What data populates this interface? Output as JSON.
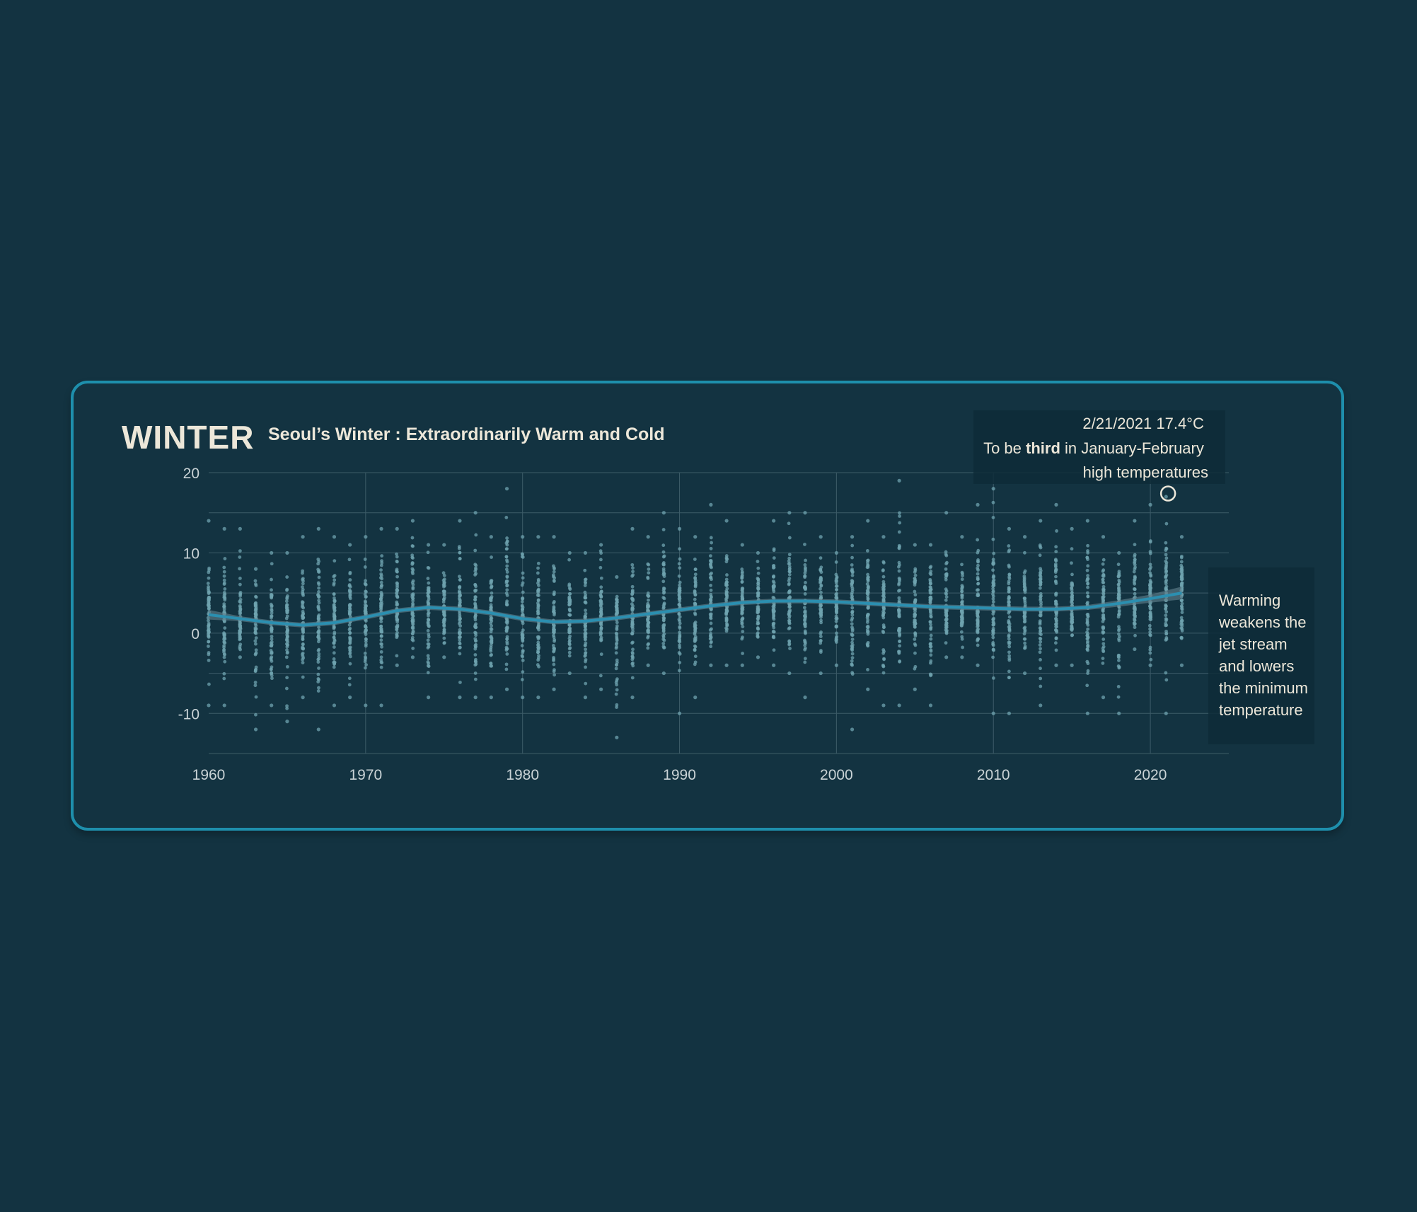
{
  "chart_data": {
    "type": "scatter",
    "title": "WINTER",
    "subtitle": "Seoul’s Winter : Extraordinarily Warm and Cold",
    "xlabel": "",
    "ylabel": "",
    "xlim": [
      1960,
      2025
    ],
    "ylim": [
      -15,
      20
    ],
    "x_ticks": [
      1960,
      1970,
      1980,
      1990,
      2000,
      2010,
      2020
    ],
    "y_ticks": [
      20,
      10,
      0,
      -10
    ],
    "x_tick_labels": [
      "1960",
      "1970",
      "1980",
      "1990",
      "2000",
      "2010",
      "2020"
    ],
    "y_tick_labels": [
      "20",
      "10",
      "0",
      "-10"
    ],
    "grid": true,
    "colors": {
      "points": "#6fa3af",
      "trend": "#2b8fb0",
      "band": "#5d7e8a",
      "highlight": "#ece7d9",
      "frame": "#1e8fac"
    },
    "trend": {
      "x": [
        1960,
        1962,
        1964,
        1966,
        1968,
        1970,
        1972,
        1974,
        1976,
        1978,
        1980,
        1982,
        1984,
        1986,
        1988,
        1990,
        1992,
        1994,
        1996,
        1998,
        2000,
        2002,
        2004,
        2006,
        2008,
        2010,
        2012,
        2014,
        2016,
        2018,
        2020,
        2022
      ],
      "y": [
        2.3,
        1.8,
        1.3,
        1.0,
        1.3,
        2.0,
        2.8,
        3.2,
        3.0,
        2.5,
        1.8,
        1.4,
        1.5,
        1.9,
        2.4,
        2.9,
        3.4,
        3.8,
        4.0,
        4.0,
        3.9,
        3.7,
        3.5,
        3.3,
        3.2,
        3.1,
        3.0,
        3.0,
        3.2,
        3.7,
        4.3,
        5.0
      ]
    },
    "trend_band_halfwidth": [
      0.6,
      0.3,
      0.3,
      0.3,
      0.3,
      0.3,
      0.3,
      0.3,
      0.3,
      0.3,
      0.3,
      0.3,
      0.3,
      0.3,
      0.3,
      0.3,
      0.3,
      0.3,
      0.3,
      0.3,
      0.3,
      0.3,
      0.3,
      0.3,
      0.3,
      0.3,
      0.3,
      0.3,
      0.3,
      0.4,
      0.5,
      0.8
    ],
    "yearly_range": {
      "years": [
        1960,
        1961,
        1962,
        1963,
        1964,
        1965,
        1966,
        1967,
        1968,
        1969,
        1970,
        1971,
        1972,
        1973,
        1974,
        1975,
        1976,
        1977,
        1978,
        1979,
        1980,
        1981,
        1982,
        1983,
        1984,
        1985,
        1986,
        1987,
        1988,
        1989,
        1990,
        1991,
        1992,
        1993,
        1994,
        1995,
        1996,
        1997,
        1998,
        1999,
        2000,
        2001,
        2002,
        2003,
        2004,
        2005,
        2006,
        2007,
        2008,
        2009,
        2010,
        2011,
        2012,
        2013,
        2014,
        2015,
        2016,
        2017,
        2018,
        2019,
        2020,
        2021,
        2022
      ],
      "min": [
        -9,
        -9,
        -3,
        -12,
        -9,
        -11,
        -8,
        -12,
        -9,
        -8,
        -9,
        -9,
        -4,
        -3,
        -8,
        -3,
        -8,
        -8,
        -8,
        -7,
        -8,
        -8,
        -7,
        -5,
        -8,
        -7,
        -13,
        -8,
        -4,
        -5,
        -10,
        -8,
        -4,
        -4,
        -4,
        -3,
        -4,
        -5,
        -8,
        -5,
        -4,
        -12,
        -7,
        -9,
        -9,
        -7,
        -9,
        -3,
        -3,
        -4,
        -10,
        -10,
        -5,
        -9,
        -4,
        -4,
        -10,
        -8,
        -10,
        -2,
        -4,
        -10,
        -4
      ],
      "max": [
        14,
        13,
        13,
        8,
        10,
        10,
        12,
        13,
        12,
        11,
        12,
        13,
        13,
        14,
        11,
        11,
        14,
        15,
        12,
        18,
        12,
        12,
        12,
        10,
        10,
        11,
        7,
        13,
        12,
        15,
        13,
        12,
        16,
        14,
        11,
        10,
        14,
        15,
        15,
        12,
        10,
        12,
        14,
        12,
        19,
        11,
        11,
        15,
        12,
        16,
        18,
        13,
        12,
        14,
        16,
        13,
        14,
        12,
        10,
        14,
        16,
        17,
        12
      ]
    },
    "annotations": [
      {
        "date": "2/21/2021",
        "x": 2021.13,
        "y": 17.4,
        "lines": [
          "2/21/2021 17.4°C",
          "To be ",
          "third",
          " in January-February",
          "high temperatures"
        ]
      },
      {
        "lines": [
          "Warming",
          "weakens the",
          "jet stream",
          "and lowers",
          "the minimum",
          "temperature"
        ]
      }
    ]
  }
}
